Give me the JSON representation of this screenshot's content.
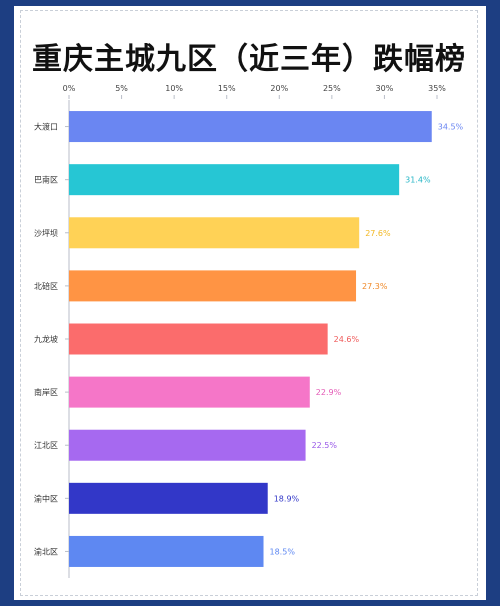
{
  "chart_data": {
    "type": "bar",
    "orientation": "horizontal",
    "title": "重庆主城九区（近三年）跌幅榜",
    "categories": [
      "大渡口",
      "巴南区",
      "沙坪坝",
      "北碚区",
      "九龙坡",
      "南岸区",
      "江北区",
      "渝中区",
      "渝北区"
    ],
    "values": [
      34.5,
      31.4,
      27.6,
      27.3,
      24.6,
      22.9,
      22.5,
      18.9,
      18.5
    ],
    "value_labels": [
      "34.5%",
      "31.4%",
      "27.6%",
      "27.3%",
      "24.6%",
      "22.9%",
      "22.5%",
      "18.9%",
      "18.5%"
    ],
    "colors": [
      "#6a86f2",
      "#26c6d4",
      "#ffd256",
      "#ff9444",
      "#fb6c6c",
      "#f576c8",
      "#a669f0",
      "#3237c8",
      "#5e88f2"
    ],
    "label_colors": [
      "#6a86f2",
      "#26b6c6",
      "#f2b823",
      "#f08a2a",
      "#ef5b5b",
      "#e45cb7",
      "#9a5ae8",
      "#3237c8",
      "#5e88f2"
    ],
    "x_ticks": [
      "0%",
      "5%",
      "10%",
      "15%",
      "20%",
      "25%",
      "30%",
      "35%"
    ],
    "xlim": [
      0,
      35
    ],
    "axis_position": "top",
    "grid": false
  }
}
